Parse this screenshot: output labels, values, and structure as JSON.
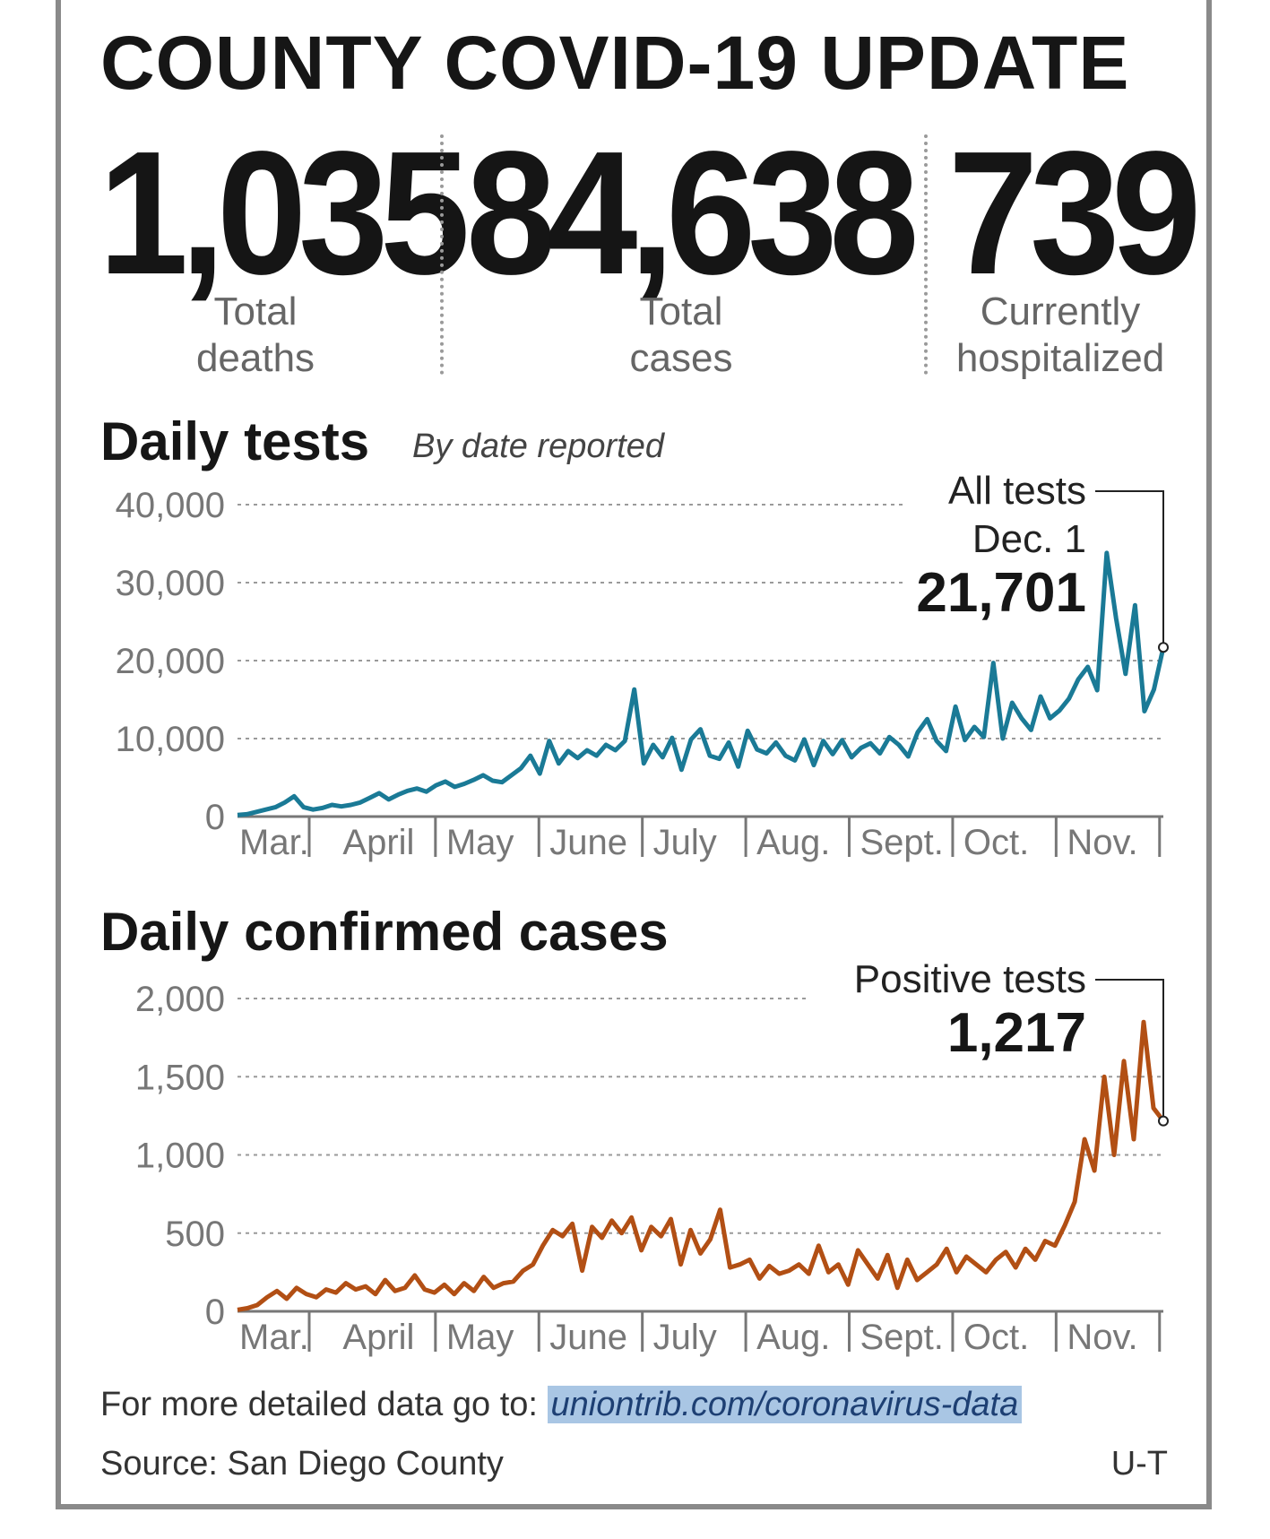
{
  "title": "COUNTY COVID-19 UPDATE",
  "stats": {
    "deaths": {
      "value": "1,035",
      "label_line1": "Total",
      "label_line2": "deaths"
    },
    "cases": {
      "value": "84,638",
      "label_line1": "Total",
      "label_line2": "cases"
    },
    "hospitalized": {
      "value": "739",
      "label_line1": "Currently",
      "label_line2": "hospitalized"
    }
  },
  "colors": {
    "tests": "#1a7a96",
    "cases": "#b24f14",
    "axis": "#777777",
    "grid": "#999999"
  },
  "footer": {
    "more_text": "For more detailed data go to: ",
    "link": "uniontrib.com/coronavirus-data",
    "source": "Source: San Diego County",
    "credit": "U-T"
  },
  "chart_data": [
    {
      "type": "line",
      "title": "Daily tests",
      "subtitle": "By date reported",
      "months": [
        "Mar.",
        "April",
        "May",
        "June",
        "July",
        "Aug.",
        "Sept.",
        "Oct.",
        "Nov."
      ],
      "ylim": [
        0,
        40000
      ],
      "yticks": [
        0,
        10000,
        20000,
        30000,
        40000
      ],
      "ytick_labels": [
        "0",
        "10,000",
        "20,000",
        "30,000",
        "40,000"
      ],
      "series": [
        {
          "name": "All tests",
          "values": [
            200,
            300,
            600,
            900,
            1200,
            1800,
            2600,
            1200,
            900,
            1100,
            1500,
            1300,
            1500,
            1800,
            2400,
            3000,
            2200,
            2800,
            3300,
            3600,
            3200,
            4000,
            4500,
            3800,
            4200,
            4700,
            5300,
            4600,
            4400,
            5300,
            6200,
            7800,
            5500,
            9700,
            6800,
            8400,
            7500,
            8500,
            7800,
            9200,
            8500,
            9700,
            16300,
            6800,
            9200,
            7600,
            10100,
            6000,
            9900,
            11200,
            7800,
            7400,
            9500,
            6400,
            11000,
            8600,
            8100,
            9500,
            7800,
            7200,
            9900,
            6600,
            9700,
            8000,
            9800,
            7600,
            8800,
            9400,
            8100,
            10200,
            9200,
            7700,
            10800,
            12500,
            9700,
            8400,
            14100,
            9800,
            11500,
            10200,
            19700,
            10000,
            14600,
            12600,
            11100,
            15400,
            12600,
            13600,
            15100,
            17600,
            19200,
            16200,
            33800,
            25400,
            18300,
            27100,
            13500,
            16300,
            21701
          ]
        }
      ],
      "annotation": {
        "line1": "All tests",
        "line2": "Dec. 1",
        "value": "21,701"
      }
    },
    {
      "type": "line",
      "title": "Daily confirmed cases",
      "months": [
        "Mar.",
        "April",
        "May",
        "June",
        "July",
        "Aug.",
        "Sept.",
        "Oct.",
        "Nov."
      ],
      "ylim": [
        0,
        2000
      ],
      "yticks": [
        0,
        500,
        1000,
        1500,
        2000
      ],
      "ytick_labels": [
        "0",
        "500",
        "1,000",
        "1,500",
        "2,000"
      ],
      "series": [
        {
          "name": "Positive tests",
          "values": [
            10,
            20,
            40,
            90,
            130,
            80,
            150,
            110,
            90,
            140,
            120,
            180,
            140,
            160,
            110,
            200,
            130,
            150,
            230,
            140,
            120,
            170,
            110,
            180,
            130,
            220,
            150,
            180,
            190,
            260,
            300,
            420,
            520,
            480,
            560,
            260,
            540,
            470,
            580,
            500,
            600,
            390,
            540,
            480,
            590,
            300,
            520,
            370,
            460,
            650,
            280,
            300,
            330,
            210,
            290,
            240,
            260,
            300,
            240,
            420,
            250,
            300,
            170,
            390,
            300,
            210,
            360,
            150,
            330,
            200,
            250,
            300,
            400,
            250,
            350,
            300,
            250,
            330,
            380,
            280,
            400,
            330,
            450,
            420,
            550,
            700,
            1100,
            900,
            1500,
            1000,
            1600,
            1100,
            1850,
            1300,
            1217
          ]
        }
      ],
      "annotation": {
        "line1": "Positive tests",
        "value": "1,217"
      }
    }
  ]
}
